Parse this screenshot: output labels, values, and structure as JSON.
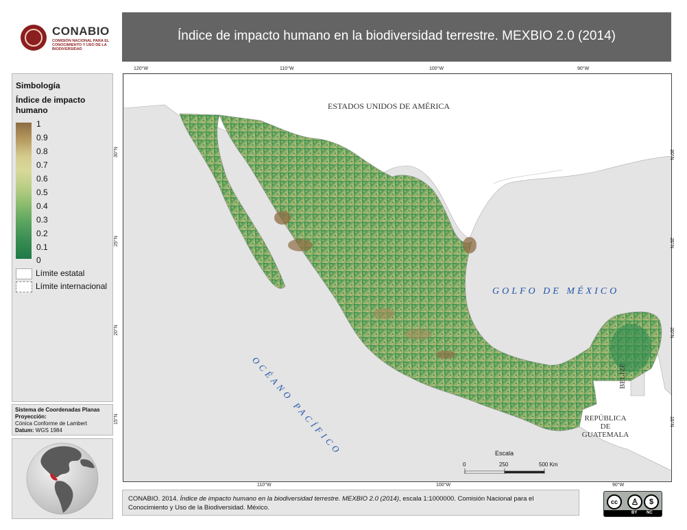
{
  "logo": {
    "name": "CONABIO",
    "subtitle": "COMISIÓN NACIONAL PARA EL CONOCIMIENTO Y USO DE LA BIODIVERSIDAD"
  },
  "title": "Índice de impacto humano en la biodiversidad terrestre. MEXBIO 2.0 (2014)",
  "legend": {
    "heading": "Simbología",
    "ramp_title": "Índice de impacto humano",
    "ticks": [
      "1",
      "0.9",
      "0.8",
      "0.7",
      "0.6",
      "0.5",
      "0.4",
      "0.3",
      "0.2",
      "0.1",
      "0"
    ],
    "state_limit": "Límite estatal",
    "intl_limit": "Límite internacional"
  },
  "coordinate_system": {
    "heading": "Sistema de Coordenadas Planas",
    "projection_label": "Proyección:",
    "projection": "Cónica Conforme de Lambert",
    "datum_label": "Datum:",
    "datum": "WGS 1984"
  },
  "graticule": {
    "top": [
      "120°W",
      "110°W",
      "100°W",
      "90°W"
    ],
    "bottom": [
      "110°W",
      "100°W",
      "90°W"
    ],
    "left": [
      "30°N",
      "25°N",
      "20°N",
      "15°N"
    ],
    "right": [
      "30°N",
      "25°N",
      "20°N",
      "15°N"
    ]
  },
  "map_labels": {
    "usa": "ESTADOS UNIDOS DE AMÉRICA",
    "gulf": "GOLFO DE MÉXICO",
    "pacific": "OCÉANO PACÍFICO",
    "belize": "BELIZE",
    "guatemala_line1": "REPÚBLICA",
    "guatemala_line2": "DE",
    "guatemala_line3": "GUATEMALA"
  },
  "scale_bar": {
    "title": "Escala",
    "ticks": [
      "0",
      "250",
      "500 Km"
    ]
  },
  "footer": {
    "prefix": "CONABIO. 2014. ",
    "title_italic": "Índice de impacto humano en la biodiversidad terrestre. MEXBIO 2.0 (2014)",
    "suffix": ", escala 1:1000000. Comisión Nacional para el Conocimiento y Uso de la Biodiversidad. México."
  },
  "license": {
    "cc": "cc",
    "by": "BY",
    "nc": "NC"
  },
  "colors": {
    "low_impact": "#1e7a46",
    "high_impact": "#8f6c44",
    "water_label": "#2255aa",
    "title_bar": "#646464"
  }
}
